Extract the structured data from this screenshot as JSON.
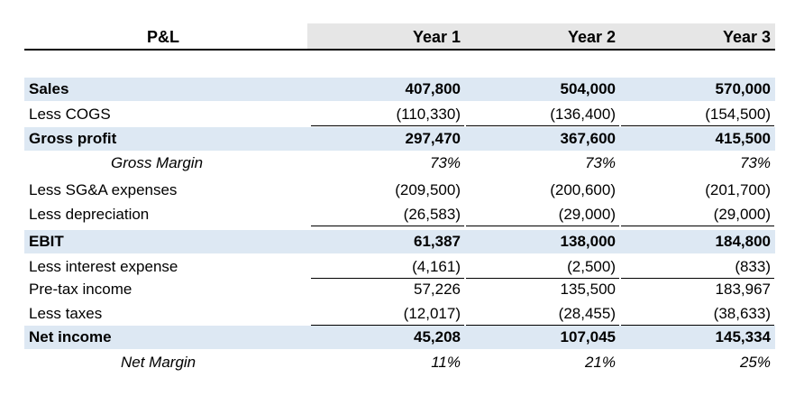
{
  "header": {
    "title": "P&L",
    "years": [
      "Year 1",
      "Year 2",
      "Year 3"
    ]
  },
  "rows": [
    {
      "label": "Sales",
      "values": [
        "407,800",
        "504,000",
        "570,000"
      ]
    },
    {
      "label": "Less COGS",
      "values": [
        "(110,330)",
        "(136,400)",
        "(154,500)"
      ]
    },
    {
      "label": "Gross profit",
      "values": [
        "297,470",
        "367,600",
        "415,500"
      ]
    },
    {
      "label": "Gross Margin",
      "values": [
        "73%",
        "73%",
        "73%"
      ]
    },
    {
      "label": "Less SG&A expenses",
      "values": [
        "(209,500)",
        "(200,600)",
        "(201,700)"
      ]
    },
    {
      "label": "Less depreciation",
      "values": [
        "(26,583)",
        "(29,000)",
        "(29,000)"
      ]
    },
    {
      "label": "EBIT",
      "values": [
        "61,387",
        "138,000",
        "184,800"
      ]
    },
    {
      "label": "Less interest expense",
      "values": [
        "(4,161)",
        "(2,500)",
        "(833)"
      ]
    },
    {
      "label": "Pre-tax income",
      "values": [
        "57,226",
        "135,500",
        "183,967"
      ]
    },
    {
      "label": "Less taxes",
      "values": [
        "(12,017)",
        "(28,455)",
        "(38,633)"
      ]
    },
    {
      "label": "Net income",
      "values": [
        "45,208",
        "107,045",
        "145,334"
      ]
    },
    {
      "label": "Net Margin",
      "values": [
        "11%",
        "21%",
        "25%"
      ]
    }
  ]
}
